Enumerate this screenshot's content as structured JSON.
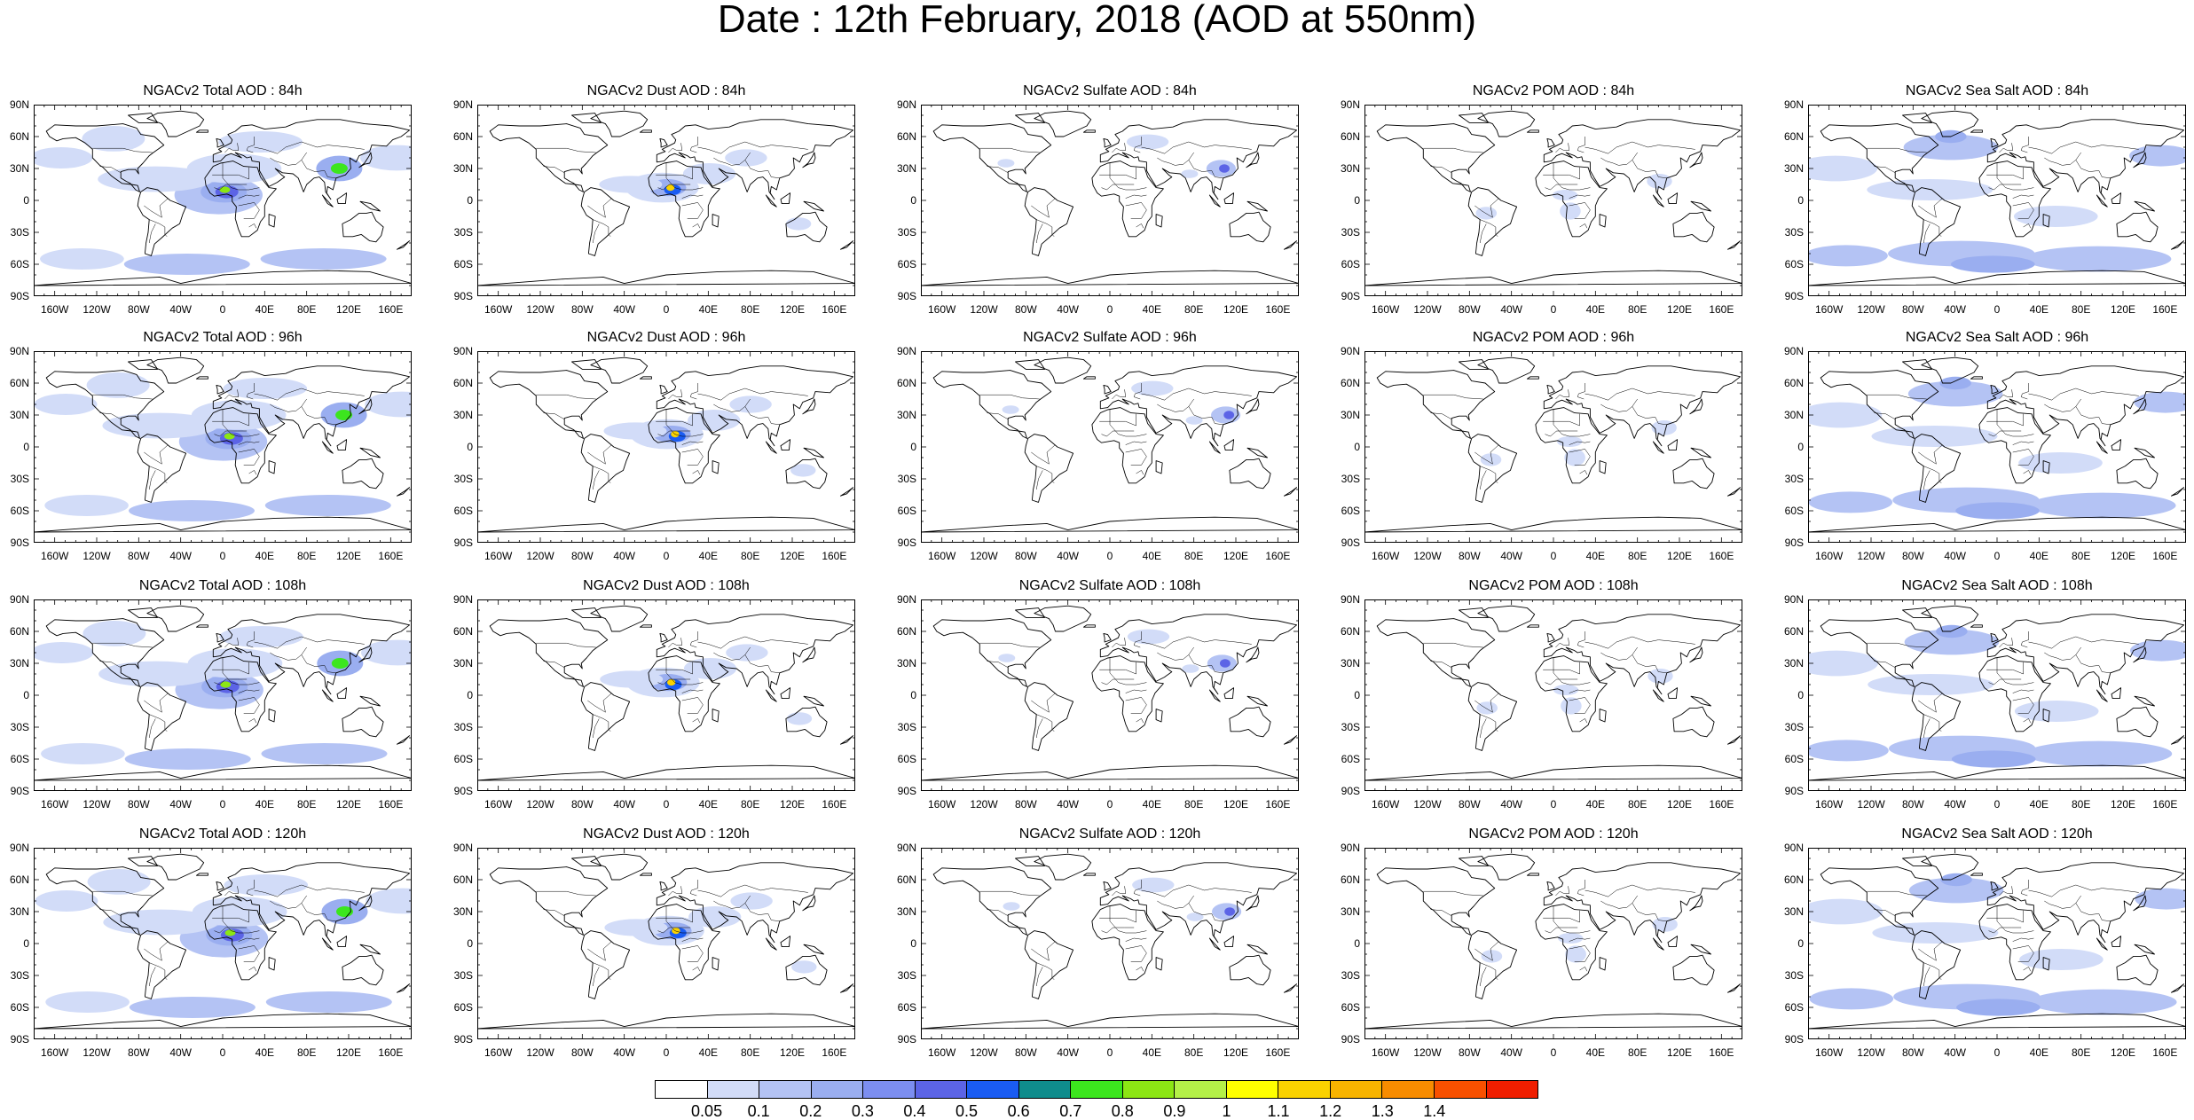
{
  "title": "Date : 12th February, 2018 (AOD at 550nm)",
  "rows": [
    [
      "NGACv2 Total AOD : 84h",
      "NGACv2 Dust AOD : 84h",
      "NGACv2 Sulfate AOD : 84h",
      "NGACv2 POM AOD : 84h",
      "NGACv2 Sea Salt AOD : 84h"
    ],
    [
      "NGACv2 Total AOD : 96h",
      "NGACv2 Dust AOD : 96h",
      "NGACv2 Sulfate AOD : 96h",
      "NGACv2 POM AOD : 96h",
      "NGACv2 Sea Salt AOD : 96h"
    ],
    [
      "NGACv2 Total AOD : 108h",
      "NGACv2 Dust AOD : 108h",
      "NGACv2 Sulfate AOD : 108h",
      "NGACv2 POM AOD : 108h",
      "NGACv2 Sea Salt AOD : 108h"
    ],
    [
      "NGACv2 Total AOD : 120h",
      "NGACv2 Dust AOD : 120h",
      "NGACv2 Sulfate AOD : 120h",
      "NGACv2 POM AOD : 120h",
      "NGACv2 Sea Salt  AOD : 120h"
    ]
  ],
  "lat_labels": [
    "90N",
    "60N",
    "30N",
    "0",
    "30S",
    "60S",
    "90S"
  ],
  "lon_labels": [
    "160W",
    "120W",
    "80W",
    "40W",
    "0",
    "40E",
    "80E",
    "120E",
    "160E"
  ],
  "colorbar": {
    "colors": [
      "#ffffff",
      "#d2dcf8",
      "#b4c3f4",
      "#9aaef0",
      "#7c8ef0",
      "#5c64e6",
      "#1a5cf2",
      "#0f8c8c",
      "#3ce61e",
      "#8ce614",
      "#b4f048",
      "#ffff00",
      "#fad200",
      "#f8b400",
      "#f88c00",
      "#f85000",
      "#f01e00"
    ],
    "labels": [
      "0.05",
      "0.1",
      "0.2",
      "0.3",
      "0.4",
      "0.5",
      "0.6",
      "0.7",
      "0.8",
      "0.9",
      "1",
      "1.1",
      "1.2",
      "1.3",
      "1.4"
    ]
  }
}
